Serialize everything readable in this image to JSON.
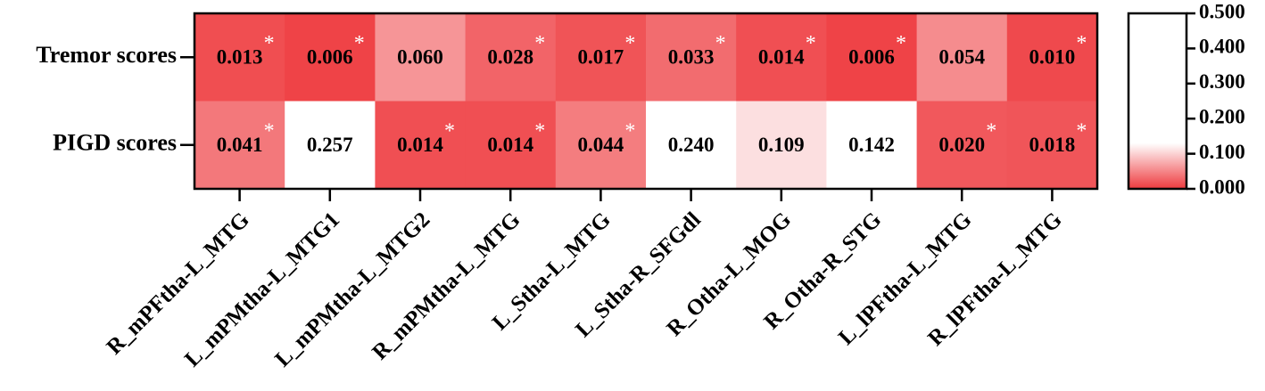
{
  "chart_data": {
    "type": "heatmap",
    "rows": [
      "Tremor scores",
      "PIGD scores"
    ],
    "columns": [
      "R_mPFtha-L_MTG",
      "L_mPMtha-L_MTG1",
      "L_mPMtha-L_MTG2",
      "R_mPMtha-L_MTG",
      "L_Stha-L_MTG",
      "L_Stha-R_SFGdl",
      "R_Otha-L_MOG",
      "R_Otha-R_STG",
      "L_lPFtha-L_MTG",
      "R_lPFtha-L_MTG"
    ],
    "values": [
      [
        0.013,
        0.006,
        0.06,
        0.028,
        0.017,
        0.033,
        0.014,
        0.006,
        0.054,
        0.01
      ],
      [
        0.041,
        0.257,
        0.014,
        0.014,
        0.044,
        0.24,
        0.109,
        0.142,
        0.02,
        0.018
      ]
    ],
    "value_labels": [
      [
        "0.013",
        "0.006",
        "0.060",
        "0.028",
        "0.017",
        "0.033",
        "0.014",
        "0.006",
        "0.054",
        "0.010"
      ],
      [
        "0.041",
        "0.257",
        "0.014",
        "0.014",
        "0.044",
        "0.240",
        "0.109",
        "0.142",
        "0.020",
        "0.018"
      ]
    ],
    "annotations": [
      [
        "*",
        "*",
        null,
        "*",
        "*",
        "*",
        "*",
        "*",
        null,
        "*"
      ],
      [
        "*",
        null,
        "*",
        "*",
        "*",
        null,
        null,
        null,
        "*",
        "*"
      ]
    ],
    "colorscale": [
      {
        "value": 0,
        "color": "#ee3a3e"
      },
      {
        "value": 0.13,
        "color": "#ffffff"
      },
      {
        "value": 0.5,
        "color": "#ffffff"
      }
    ],
    "clim": [
      0,
      0.5
    ],
    "cticks": [
      {
        "value": 0,
        "label": "0.000"
      },
      {
        "value": 0.1,
        "label": "0.100"
      },
      {
        "value": 0.2,
        "label": "0.200"
      },
      {
        "value": 0.3,
        "label": "0.300"
      },
      {
        "value": 0.4,
        "label": "0.400"
      },
      {
        "value": 0.5,
        "label": "0.500"
      }
    ]
  }
}
